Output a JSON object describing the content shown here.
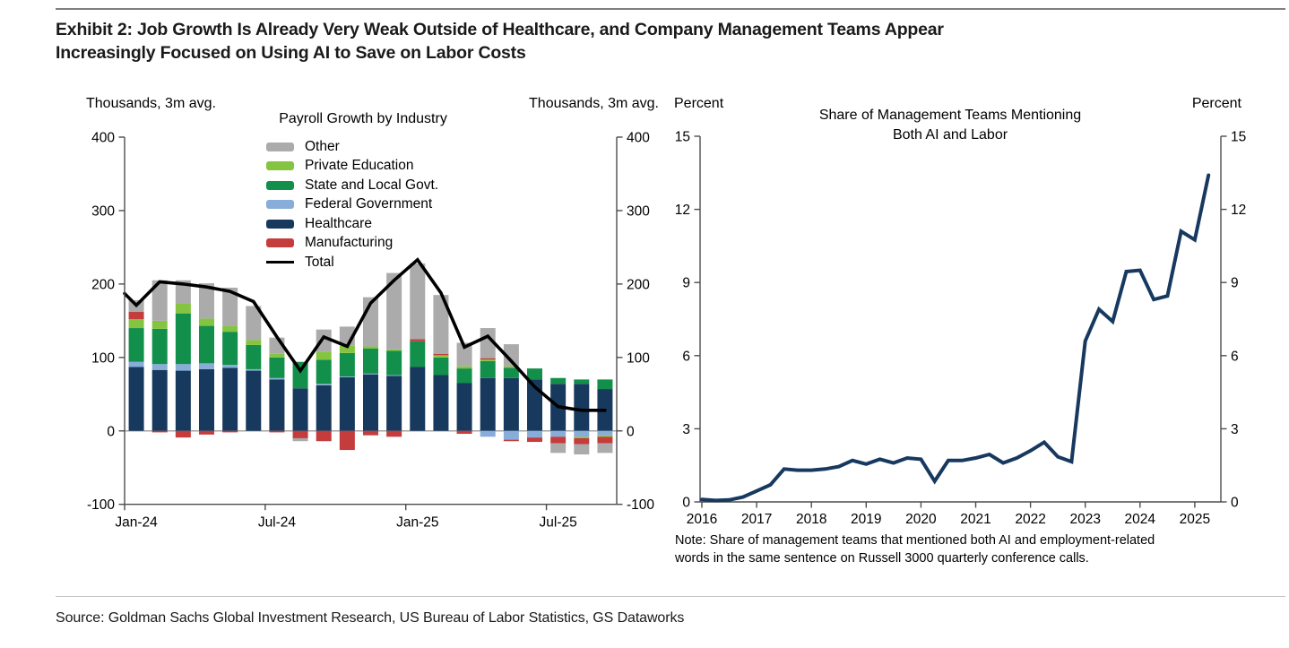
{
  "header": {
    "title_line1": "Exhibit 2: Job Growth Is Already Very Weak Outside of Healthcare, and Company Management Teams Appear",
    "title_line2": "Increasingly Focused on Using AI to Save on Labor Costs"
  },
  "left_chart": {
    "unit_left": "Thousands, 3m avg.",
    "unit_right": "Thousands, 3m avg.",
    "legend_title": "Payroll Growth by Industry",
    "legend": [
      {
        "label": "Other",
        "color": "#ababab",
        "type": "box"
      },
      {
        "label": "Private Education",
        "color": "#85c441",
        "type": "box"
      },
      {
        "label": "State and Local Govt.",
        "color": "#128f4a",
        "type": "box"
      },
      {
        "label": "Federal Government",
        "color": "#88add8",
        "type": "box"
      },
      {
        "label": "Healthcare",
        "color": "#18395e",
        "type": "box"
      },
      {
        "label": "Manufacturing",
        "color": "#c43c3c",
        "type": "box"
      },
      {
        "label": "Total",
        "color": "#000000",
        "type": "line"
      }
    ]
  },
  "right_chart": {
    "unit_left": "Percent",
    "unit_right": "Percent",
    "title_line1": "Share of Management Teams Mentioning",
    "title_line2": "Both AI and Labor"
  },
  "note": {
    "line1": "Note: Share of management teams that mentioned both AI and employment-related",
    "line2": "words in the same sentence on Russell 3000 quarterly conference calls."
  },
  "source": "Source: Goldman Sachs Global Investment Research, US Bureau of Labor Statistics, GS Dataworks",
  "chart_data": [
    {
      "type": "bar",
      "subtype": "stacked-bars-with-total-line",
      "title": "Payroll Growth by Industry",
      "ylabel": "Thousands, 3m avg.",
      "ylim": [
        -100,
        400
      ],
      "yticks": [
        400,
        300,
        200,
        100,
        0,
        -100
      ],
      "grid": "zero-line-only",
      "legend_position": "top-inside",
      "categories": [
        "Jan-24",
        "Feb-24",
        "Mar-24",
        "Apr-24",
        "May-24",
        "Jun-24",
        "Jul-24",
        "Aug-24",
        "Sep-24",
        "Oct-24",
        "Nov-24",
        "Dec-24",
        "Jan-25",
        "Feb-25",
        "Mar-25",
        "Apr-25",
        "May-25",
        "Jun-25",
        "Jul-25",
        "Aug-25",
        "Sep-25"
      ],
      "x_tick_indices": [
        0,
        6,
        12,
        18
      ],
      "x_tick_labels": [
        "Jan-24",
        "Jul-24",
        "Jan-25",
        "Jul-25"
      ],
      "series": [
        {
          "name": "Healthcare",
          "color": "#18395e",
          "values": [
            87,
            83,
            82,
            84,
            86,
            82,
            70,
            58,
            62,
            73,
            77,
            75,
            87,
            76,
            65,
            72,
            72,
            70,
            64,
            64,
            57
          ]
        },
        {
          "name": "Federal Government",
          "color": "#88add8",
          "values": [
            7,
            8,
            9,
            8,
            4,
            2,
            2,
            0,
            2,
            1,
            1,
            1,
            0,
            0,
            0,
            -8,
            -12,
            -9,
            -8,
            -8,
            -6
          ]
        },
        {
          "name": "State and Local Govt.",
          "color": "#128f4a",
          "values": [
            46,
            48,
            69,
            51,
            45,
            33,
            28,
            36,
            33,
            32,
            34,
            33,
            35,
            24,
            20,
            23,
            14,
            15,
            8,
            6,
            13
          ]
        },
        {
          "name": "Private Education",
          "color": "#85c441",
          "values": [
            12,
            11,
            13,
            10,
            8,
            7,
            5,
            0,
            11,
            10,
            3,
            2,
            0,
            3,
            3,
            2,
            2,
            0,
            0,
            -2,
            -2
          ]
        },
        {
          "name": "Manufacturing",
          "color": "#c43c3c",
          "values": [
            10,
            -2,
            -9,
            -5,
            -2,
            0,
            -2,
            -10,
            -14,
            -26,
            -6,
            -8,
            3,
            2,
            -4,
            2,
            -2,
            -6,
            -9,
            -8,
            -9
          ]
        },
        {
          "name": "Other",
          "color": "#ababab",
          "values": [
            16,
            55,
            32,
            48,
            52,
            46,
            22,
            -4,
            30,
            26,
            67,
            104,
            103,
            80,
            32,
            41,
            30,
            0,
            -13,
            -14,
            -13
          ]
        }
      ],
      "total_line": {
        "name": "Total",
        "color": "#000000",
        "edge_value": 187,
        "values": [
          171,
          203,
          200,
          196,
          190,
          176,
          128,
          82,
          128,
          115,
          174,
          205,
          233,
          188,
          114,
          129,
          95,
          60,
          33,
          28,
          28
        ]
      }
    },
    {
      "type": "line",
      "title": "Share of Management Teams Mentioning Both AI and Labor",
      "ylabel": "Percent",
      "ylim": [
        0,
        15
      ],
      "yticks": [
        15,
        12,
        9,
        6,
        3,
        0
      ],
      "grid": "off",
      "x_start_year": 2016,
      "x_step_years": 0.25,
      "xticks": [
        2016,
        2017,
        2018,
        2019,
        2020,
        2021,
        2022,
        2023,
        2024,
        2025
      ],
      "series": [
        {
          "name": "Share mentioning both AI and Labor",
          "color": "#17395f",
          "values": [
            0.1,
            0.06,
            0.08,
            0.2,
            0.45,
            0.7,
            1.35,
            1.3,
            1.3,
            1.35,
            1.45,
            1.7,
            1.55,
            1.75,
            1.6,
            1.8,
            1.75,
            0.85,
            1.7,
            1.7,
            1.8,
            1.95,
            1.6,
            1.8,
            2.1,
            2.45,
            1.85,
            1.65,
            6.6,
            7.9,
            7.4,
            9.45,
            9.5,
            8.3,
            8.45,
            11.1,
            10.75,
            13.4
          ]
        }
      ]
    }
  ]
}
